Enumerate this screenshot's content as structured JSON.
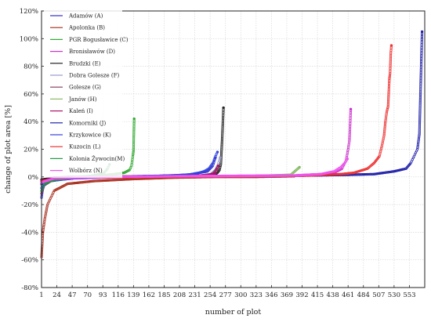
{
  "chart_data": {
    "type": "scatter",
    "xlabel": "number of plot",
    "ylabel": "change of plot area [%]",
    "xlim": [
      1,
      576
    ],
    "ylim": [
      -80,
      120
    ],
    "grid": true,
    "legend_placement": "top-left",
    "x_tick_labels": [
      "1",
      "24",
      "47",
      "70",
      "93",
      "116",
      "139",
      "162",
      "185",
      "208",
      "231",
      "254",
      "277",
      "300",
      "323",
      "346",
      "369",
      "392",
      "415",
      "438",
      "461",
      "484",
      "507",
      "530",
      "553"
    ],
    "y_tick_labels": [
      "120%",
      "100%",
      "80%",
      "60%",
      "40%",
      "20%",
      "0%",
      "-20%",
      "-40%",
      "-60%",
      "-80%"
    ],
    "y_ticks": [
      120,
      100,
      80,
      60,
      40,
      20,
      0,
      -20,
      -40,
      -60,
      -80
    ],
    "series": [
      {
        "name": "Adamów (A)",
        "color": "#3333cc",
        "points": [
          [
            1,
            -15
          ],
          [
            3,
            -8
          ],
          [
            5,
            -5
          ],
          [
            8,
            -3
          ],
          [
            15,
            -1.5
          ],
          [
            30,
            -0.5
          ],
          [
            60,
            0
          ],
          [
            120,
            0.3
          ],
          [
            180,
            0.8
          ],
          [
            220,
            1.5
          ],
          [
            250,
            4
          ],
          [
            258,
            8
          ],
          [
            262,
            14
          ]
        ]
      },
      {
        "name": "Apolonka (B)",
        "color": "#aa3322",
        "points": [
          [
            1,
            -58
          ],
          [
            3,
            -40
          ],
          [
            6,
            -30
          ],
          [
            10,
            -20
          ],
          [
            20,
            -10
          ],
          [
            40,
            -5
          ],
          [
            80,
            -3
          ],
          [
            140,
            -1.5
          ],
          [
            200,
            -0.5
          ],
          [
            260,
            0
          ],
          [
            320,
            0
          ],
          [
            380,
            0.5
          ]
        ]
      },
      {
        "name": "PGR Bogusławice (C)",
        "color": "#33aa33",
        "points": [
          [
            1,
            -4
          ],
          [
            10,
            -1
          ],
          [
            40,
            0
          ],
          [
            80,
            0.5
          ],
          [
            110,
            2
          ],
          [
            125,
            3
          ],
          [
            133,
            5
          ],
          [
            136,
            8
          ],
          [
            138,
            15
          ],
          [
            139,
            19
          ],
          [
            140,
            42
          ]
        ]
      },
      {
        "name": "Bronisławów (D)",
        "color": "#cc33cc",
        "points": [
          [
            1,
            -2
          ],
          [
            30,
            -0.5
          ],
          [
            100,
            0
          ],
          [
            200,
            0.3
          ],
          [
            330,
            0.5
          ],
          [
            380,
            1
          ],
          [
            420,
            2
          ],
          [
            440,
            3
          ],
          [
            452,
            6
          ],
          [
            458,
            12
          ],
          [
            461,
            20
          ],
          [
            463,
            26
          ],
          [
            465,
            49
          ]
        ]
      },
      {
        "name": "Brudzki (E)",
        "color": "#222222",
        "points": [
          [
            1,
            -2
          ],
          [
            20,
            -0.5
          ],
          [
            80,
            0
          ],
          [
            200,
            0.5
          ],
          [
            260,
            1
          ],
          [
            265,
            3
          ],
          [
            268,
            5
          ],
          [
            270,
            9
          ],
          [
            272,
            27
          ],
          [
            274,
            50
          ]
        ]
      },
      {
        "name": "Dobra Golesze (F)",
        "color": "#9999cc",
        "points": [
          [
            1,
            -3
          ],
          [
            30,
            -1
          ],
          [
            100,
            0
          ],
          [
            180,
            0.5
          ],
          [
            240,
            1
          ],
          [
            255,
            2
          ],
          [
            262,
            5
          ],
          [
            266,
            9
          ],
          [
            269,
            14
          ]
        ]
      },
      {
        "name": "Golesze (G)",
        "color": "#884466",
        "points": [
          [
            1,
            -12
          ],
          [
            5,
            -6
          ],
          [
            15,
            -3
          ],
          [
            40,
            -1
          ],
          [
            100,
            0
          ],
          [
            180,
            0.5
          ],
          [
            240,
            1
          ],
          [
            258,
            2
          ],
          [
            264,
            6
          ]
        ]
      },
      {
        "name": "Janów (H)",
        "color": "#88bb66",
        "points": [
          [
            1,
            -6
          ],
          [
            10,
            -2
          ],
          [
            60,
            0
          ],
          [
            150,
            0.3
          ],
          [
            250,
            0.5
          ],
          [
            330,
            0.8
          ],
          [
            375,
            1.5
          ],
          [
            388,
            7
          ]
        ]
      },
      {
        "name": "Kaleń (I)",
        "color": "#aa1166",
        "points": [
          [
            1,
            -3
          ],
          [
            20,
            -1
          ],
          [
            80,
            0
          ],
          [
            180,
            0.5
          ],
          [
            250,
            1
          ],
          [
            262,
            3
          ],
          [
            266,
            8
          ]
        ]
      },
      {
        "name": "Komorniki (J)",
        "color": "#2222aa",
        "points": [
          [
            1,
            -5
          ],
          [
            20,
            -1
          ],
          [
            100,
            0
          ],
          [
            200,
            0.3
          ],
          [
            300,
            0.5
          ],
          [
            400,
            1
          ],
          [
            460,
            1.5
          ],
          [
            500,
            2
          ],
          [
            530,
            4
          ],
          [
            548,
            6
          ],
          [
            555,
            10
          ],
          [
            560,
            15
          ],
          [
            565,
            20
          ],
          [
            568,
            31
          ],
          [
            572,
            105
          ]
        ]
      },
      {
        "name": "Krzykowice (K)",
        "color": "#3344dd",
        "points": [
          [
            1,
            -8
          ],
          [
            10,
            -3
          ],
          [
            50,
            -1
          ],
          [
            120,
            0
          ],
          [
            200,
            1
          ],
          [
            230,
            2
          ],
          [
            245,
            4
          ],
          [
            252,
            6
          ],
          [
            258,
            10
          ],
          [
            262,
            15
          ],
          [
            265,
            18
          ]
        ]
      },
      {
        "name": "Kuzocin (L)",
        "color": "#ee3333",
        "points": [
          [
            1,
            -3
          ],
          [
            50,
            -0.5
          ],
          [
            150,
            0
          ],
          [
            300,
            0.5
          ],
          [
            400,
            1
          ],
          [
            450,
            2
          ],
          [
            470,
            3
          ],
          [
            490,
            6
          ],
          [
            500,
            10
          ],
          [
            508,
            15
          ],
          [
            512,
            23
          ],
          [
            515,
            30
          ],
          [
            517,
            40
          ],
          [
            519,
            47
          ],
          [
            521,
            51
          ],
          [
            523,
            71
          ],
          [
            524,
            75
          ],
          [
            525,
            89
          ],
          [
            526,
            95
          ]
        ]
      },
      {
        "name": "Kolonia Żywocin(M)",
        "color": "#229944",
        "points": [
          [
            1,
            -10
          ],
          [
            5,
            -5
          ],
          [
            20,
            -2
          ],
          [
            50,
            -0.5
          ],
          [
            80,
            1
          ],
          [
            95,
            3
          ],
          [
            100,
            6
          ],
          [
            103,
            9
          ]
        ]
      },
      {
        "name": "Wolbórz (N)",
        "color": "#ee55ee",
        "points": [
          [
            1,
            -4
          ],
          [
            20,
            -1
          ],
          [
            100,
            0
          ],
          [
            200,
            0.5
          ],
          [
            300,
            0.8
          ],
          [
            380,
            1
          ],
          [
            420,
            2
          ],
          [
            440,
            4
          ],
          [
            450,
            7
          ],
          [
            456,
            10
          ],
          [
            460,
            13
          ]
        ]
      }
    ]
  }
}
